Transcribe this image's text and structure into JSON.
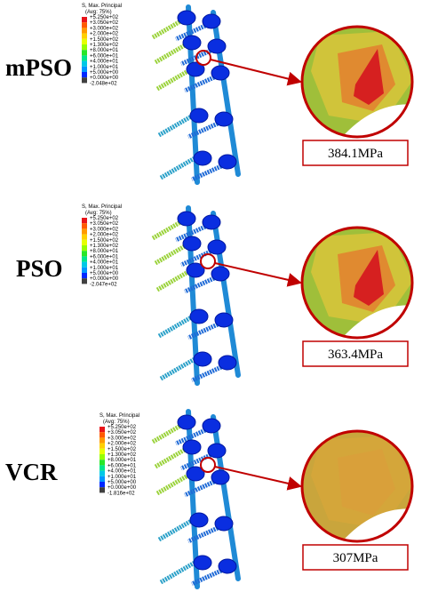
{
  "panels": [
    {
      "label": "mPSO",
      "legend": {
        "title": "S, Max. Principal",
        "subtitle": "(Avg: 75%)",
        "levels": [
          "+5.250e+02",
          "+3.050e+02",
          "+3.000e+02",
          "+2.000e+02",
          "+1.500e+02",
          "+1.300e+02",
          "+8.000e+01",
          "+6.000e+01",
          "+4.000e+01",
          "+1.000e+01",
          "+5.000e+00",
          "+0.000e+00",
          "-2.048e+02"
        ]
      },
      "max_stress": "384.1MPa"
    },
    {
      "label": "PSO",
      "legend": {
        "title": "S, Max. Principal",
        "subtitle": "(Avg: 75%)",
        "levels": [
          "+5.250e+02",
          "+3.050e+02",
          "+3.000e+02",
          "+2.000e+02",
          "+1.500e+02",
          "+1.300e+02",
          "+8.000e+01",
          "+6.000e+01",
          "+4.000e+01",
          "+1.000e+01",
          "+5.000e+00",
          "+0.000e+00",
          "-2.047e+02"
        ]
      },
      "max_stress": "363.4MPa"
    },
    {
      "label": "VCR",
      "legend": {
        "title": "S, Max. Principal",
        "subtitle": "(Avg: 75%)",
        "levels": [
          "+5.250e+02",
          "+3.050e+02",
          "+3.000e+02",
          "+2.000e+02",
          "+1.500e+02",
          "+1.300e+02",
          "+8.000e+01",
          "+6.000e+01",
          "+4.000e+01",
          "+1.000e+01",
          "+5.000e+00",
          "+0.000e+00",
          "-1.816e+02"
        ]
      },
      "max_stress": "307MPa"
    }
  ]
}
